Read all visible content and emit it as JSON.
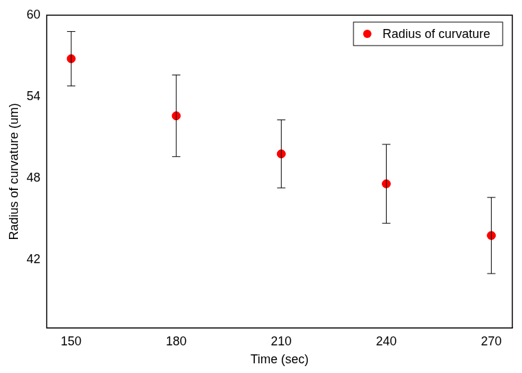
{
  "chart_data": {
    "type": "scatter",
    "xlabel": "Time (sec)",
    "ylabel": "Radius of curvature (um)",
    "series": [
      {
        "name": "Radius of curvature",
        "color": "#ff0000",
        "marker": "circle",
        "x": [
          150,
          180,
          210,
          240,
          270
        ],
        "values": [
          56.8,
          52.6,
          49.8,
          47.6,
          43.8
        ],
        "yerr": [
          2.0,
          3.0,
          2.5,
          2.9,
          2.8
        ]
      }
    ],
    "xlim": [
      143,
      276
    ],
    "xticks": [
      150,
      180,
      210,
      240,
      270
    ],
    "ylim": [
      37,
      60
    ],
    "yticks": [
      42,
      48,
      54,
      60
    ],
    "grid": false,
    "legend": "upper right"
  }
}
